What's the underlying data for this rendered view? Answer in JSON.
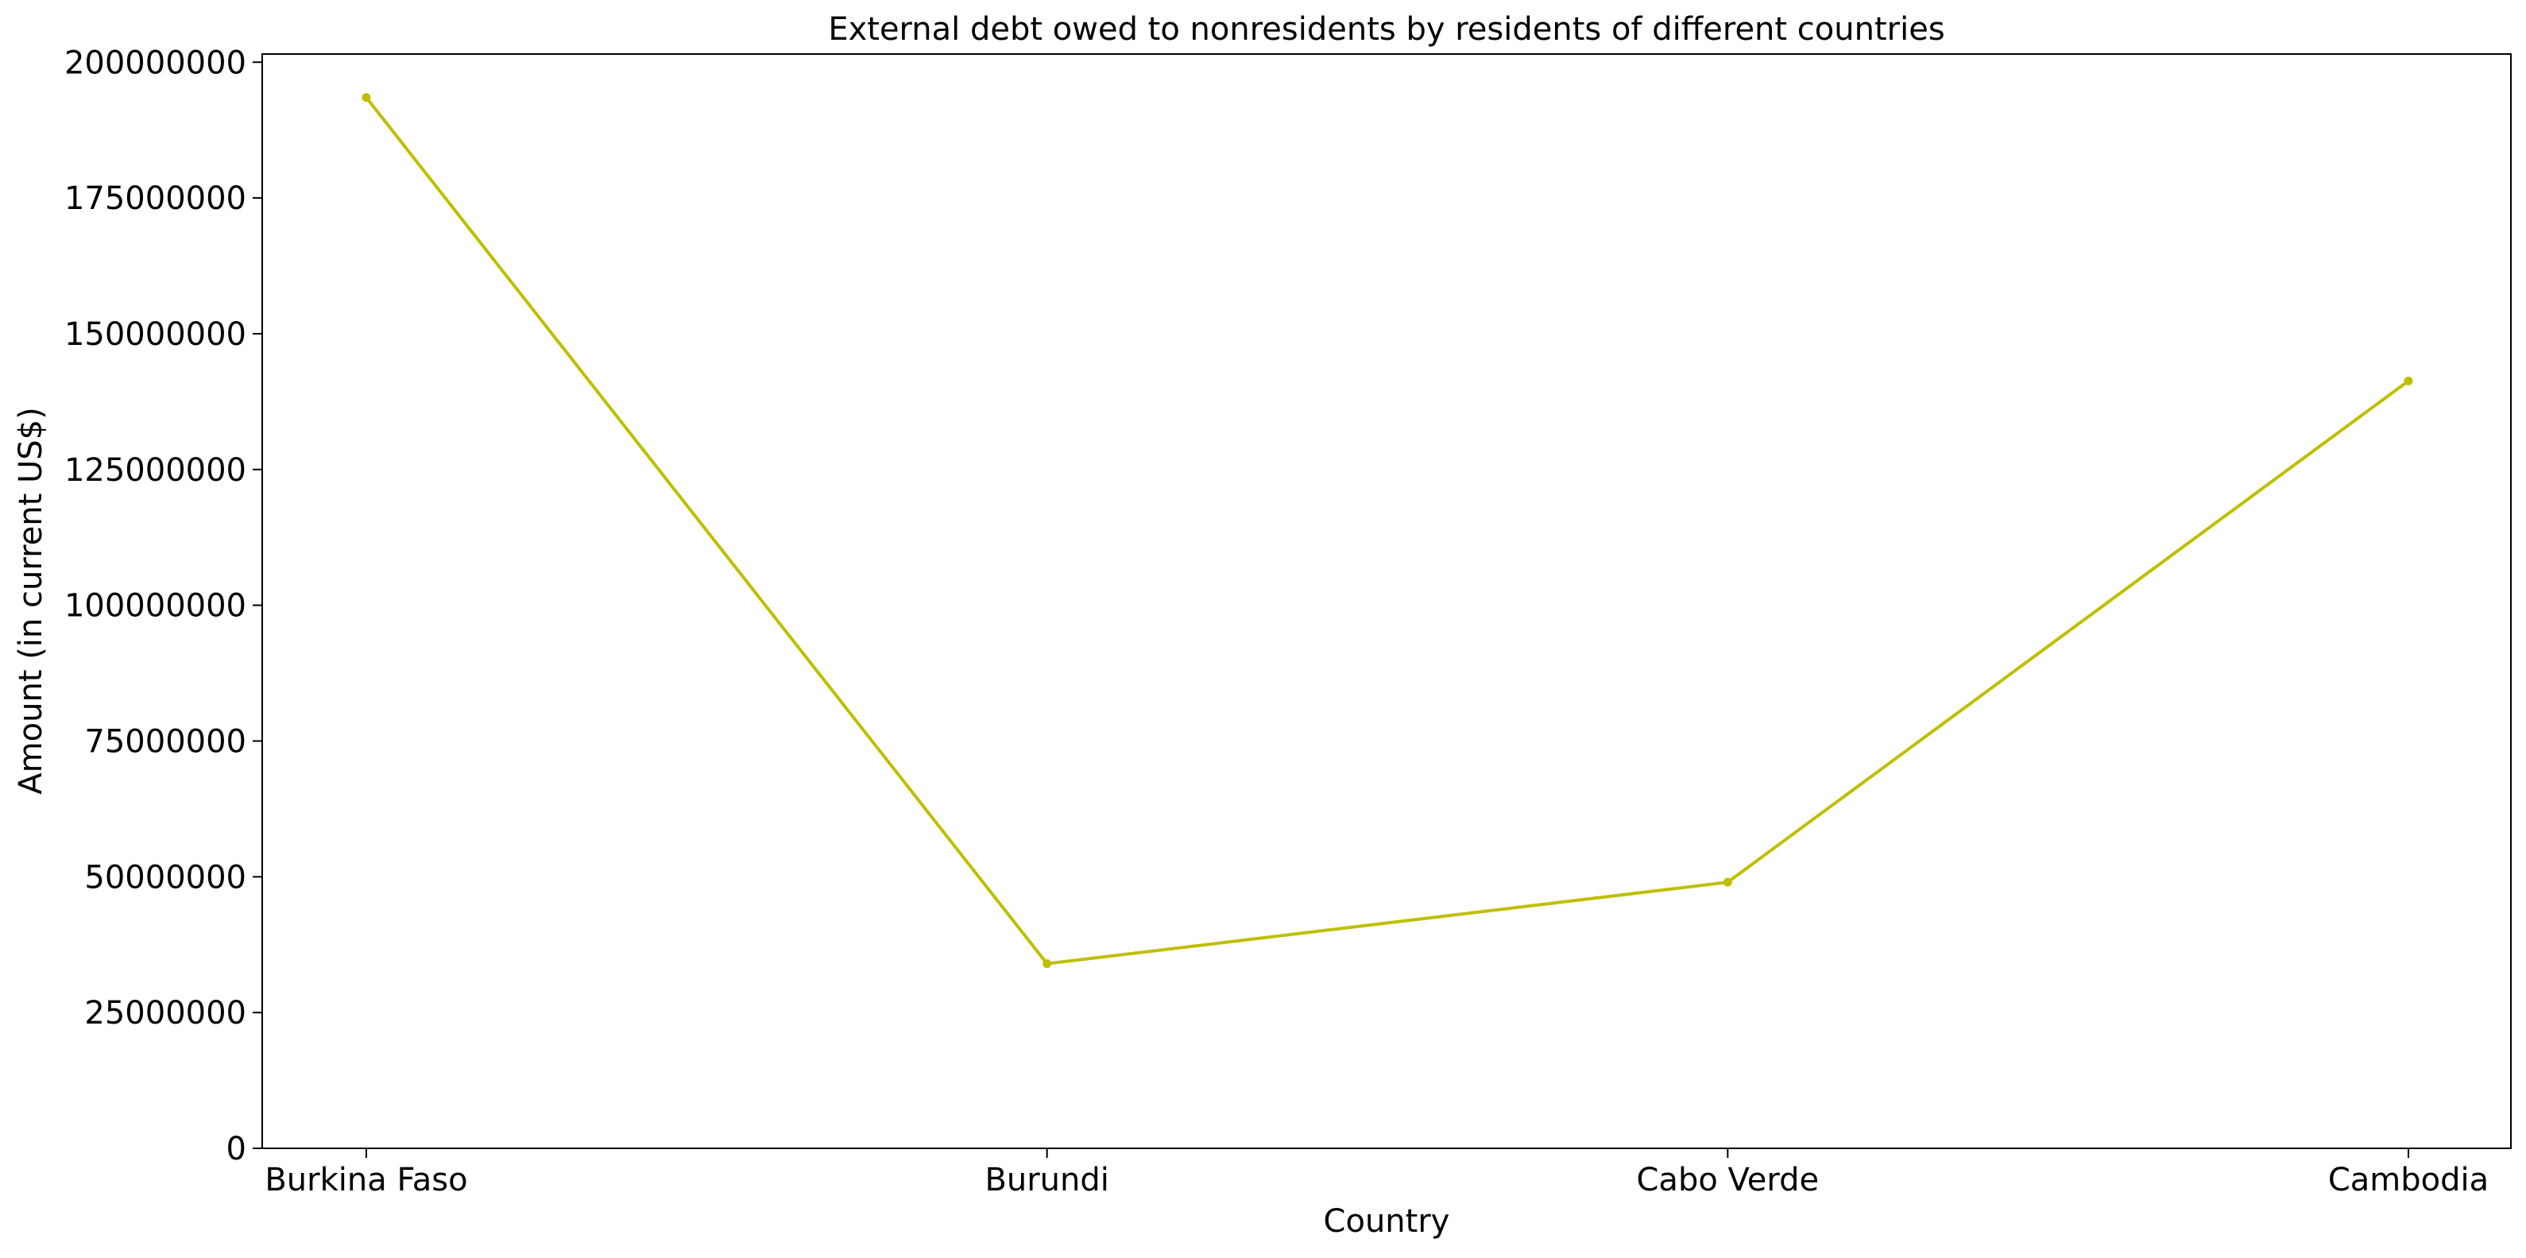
{
  "chart_data": {
    "type": "line",
    "title": "External debt owed to nonresidents by residents of different countries",
    "xlabel": "Country",
    "ylabel": "Amount (in current US$)",
    "categories": [
      "Burkina Faso",
      "Burundi",
      "Cabo Verde",
      "Cambodia"
    ],
    "series": [
      {
        "values": [
          193500000,
          34000000,
          49000000,
          141300000
        ],
        "color": "#bfbf00"
      }
    ],
    "ylim": [
      0,
      201500000
    ],
    "yticks": [
      0,
      25000000,
      50000000,
      75000000,
      100000000,
      125000000,
      150000000,
      175000000,
      200000000
    ],
    "ytick_labels": [
      "0",
      "25000000",
      "50000000",
      "75000000",
      "100000000",
      "125000000",
      "150000000",
      "175000000",
      "200000000"
    ],
    "grid": false,
    "legend": "none"
  }
}
